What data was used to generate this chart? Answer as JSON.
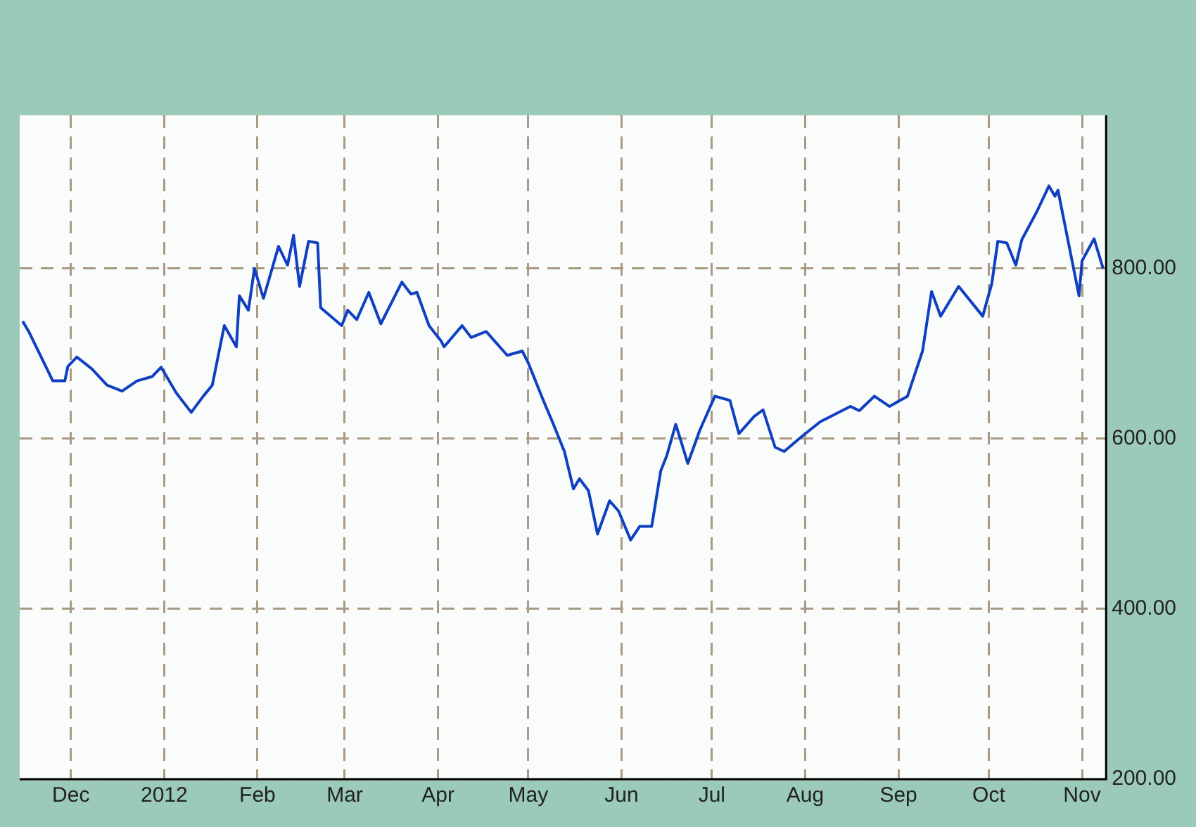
{
  "chart_data": {
    "type": "line",
    "x": [
      "2011-11-15",
      "2011-11-17",
      "2011-11-25",
      "2011-11-29",
      "2011-11-30",
      "2011-12-03",
      "2011-12-08",
      "2011-12-13",
      "2011-12-18",
      "2011-12-23",
      "2011-12-28",
      "2011-12-31",
      "2012-01-05",
      "2012-01-10",
      "2012-01-14",
      "2012-01-17",
      "2012-01-21",
      "2012-01-25",
      "2012-01-26",
      "2012-01-29",
      "2012-01-31",
      "2012-02-03",
      "2012-02-08",
      "2012-02-11",
      "2012-02-13",
      "2012-02-15",
      "2012-02-18",
      "2012-02-21",
      "2012-02-22",
      "2012-02-29",
      "2012-03-02",
      "2012-03-05",
      "2012-03-09",
      "2012-03-13",
      "2012-03-20",
      "2012-03-23",
      "2012-03-25",
      "2012-03-29",
      "2012-04-02",
      "2012-04-03",
      "2012-04-09",
      "2012-04-12",
      "2012-04-17",
      "2012-04-24",
      "2012-04-29",
      "2012-05-01",
      "2012-05-06",
      "2012-05-09",
      "2012-05-13",
      "2012-05-16",
      "2012-05-18",
      "2012-05-21",
      "2012-05-24",
      "2012-05-28",
      "2012-05-31",
      "2012-06-04",
      "2012-06-07",
      "2012-06-11",
      "2012-06-14",
      "2012-06-16",
      "2012-06-19",
      "2012-06-23",
      "2012-06-27",
      "2012-07-02",
      "2012-07-07",
      "2012-07-10",
      "2012-07-15",
      "2012-07-18",
      "2012-07-22",
      "2012-07-25",
      "2012-07-31",
      "2012-08-06",
      "2012-08-16",
      "2012-08-19",
      "2012-08-24",
      "2012-08-29",
      "2012-09-04",
      "2012-09-09",
      "2012-09-12",
      "2012-09-15",
      "2012-09-21",
      "2012-09-29",
      "2012-10-02",
      "2012-10-04",
      "2012-10-07",
      "2012-10-10",
      "2012-10-12",
      "2012-10-17",
      "2012-10-21",
      "2012-10-23",
      "2012-10-24",
      "2012-10-31",
      "2012-11-01",
      "2012-11-05",
      "2012-11-08"
    ],
    "series": [
      {
        "color": "#1040c0",
        "values": [
          738,
          726,
          668,
          668,
          685,
          696,
          682,
          663,
          656,
          668,
          673,
          684,
          654,
          631,
          650,
          663,
          733,
          708,
          768,
          751,
          800,
          765,
          826,
          804,
          839,
          779,
          832,
          830,
          754,
          733,
          751,
          740,
          772,
          735,
          784,
          770,
          772,
          733,
          715,
          708,
          733,
          719,
          726,
          698,
          703,
          689,
          645,
          620,
          585,
          541,
          553,
          539,
          488,
          527,
          515,
          481,
          497,
          497,
          562,
          580,
          617,
          571,
          610,
          650,
          645,
          606,
          626,
          634,
          590,
          585,
          603,
          620,
          638,
          633,
          650,
          638,
          650,
          703,
          773,
          744,
          779,
          744,
          782,
          832,
          830,
          804,
          834,
          867,
          897,
          885,
          892,
          768,
          809,
          835,
          800
        ]
      }
    ],
    "xlim": [
      "2011-11-14",
      "2012-11-09"
    ],
    "xticks": [
      {
        "value": "2011-12-01",
        "label": "Dec"
      },
      {
        "value": "2012-01-01",
        "label": "2012"
      },
      {
        "value": "2012-02-01",
        "label": "Feb"
      },
      {
        "value": "2012-03-01",
        "label": "Mar"
      },
      {
        "value": "2012-04-01",
        "label": "Apr"
      },
      {
        "value": "2012-05-01",
        "label": "May"
      },
      {
        "value": "2012-06-01",
        "label": "Jun"
      },
      {
        "value": "2012-07-01",
        "label": "Jul"
      },
      {
        "value": "2012-08-01",
        "label": "Aug"
      },
      {
        "value": "2012-09-01",
        "label": "Sep"
      },
      {
        "value": "2012-10-01",
        "label": "Oct"
      },
      {
        "value": "2012-11-01",
        "label": "Nov"
      }
    ],
    "ylim": [
      200,
      980
    ],
    "yticks": [
      {
        "value": 200,
        "label": "200.00"
      },
      {
        "value": 400,
        "label": "400.00"
      },
      {
        "value": 600,
        "label": "600.00"
      },
      {
        "value": 800,
        "label": "800.00"
      }
    ],
    "grid": true,
    "legend": false,
    "marker": "none",
    "line_style": "solid"
  }
}
